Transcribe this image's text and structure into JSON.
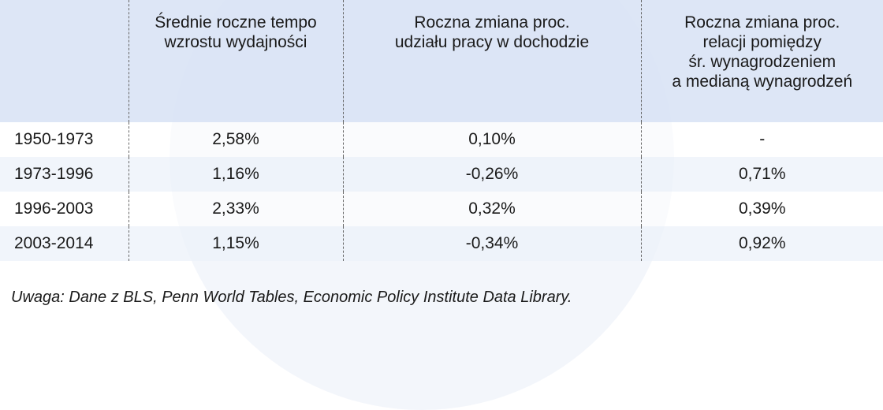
{
  "chart_data": {
    "type": "table",
    "columns": [
      "",
      "Średnie roczne tempo\nwzrostu wydajności",
      "Roczna zmiana proc.\nudziału pracy w dochodzie",
      "Roczna zmiana proc.\nrelacji pomiędzy\nśr. wynagrodzeniem\na medianą wynagrodzeń"
    ],
    "header_lines": [
      [],
      [
        "Średnie roczne tempo",
        "wzrostu wydajności"
      ],
      [
        "Roczna zmiana proc.",
        "udziału pracy w dochodzie"
      ],
      [
        "Roczna zmiana proc.",
        "relacji pomiędzy",
        "śr. wynagrodzeniem",
        "a medianą wynagrodzeń"
      ]
    ],
    "rows": [
      [
        "1950-1973",
        "2,58%",
        "0,10%",
        "-"
      ],
      [
        "1973-1996",
        "1,16%",
        "-0,26%",
        "0,71%"
      ],
      [
        "1996-2003",
        "2,33%",
        "0,32%",
        "0,39%"
      ],
      [
        "2003-2014",
        "1,15%",
        "-0,34%",
        "0,92%"
      ]
    ]
  },
  "note": "Uwaga: Dane z BLS, Penn World Tables, Economic Policy Institute Data Library."
}
